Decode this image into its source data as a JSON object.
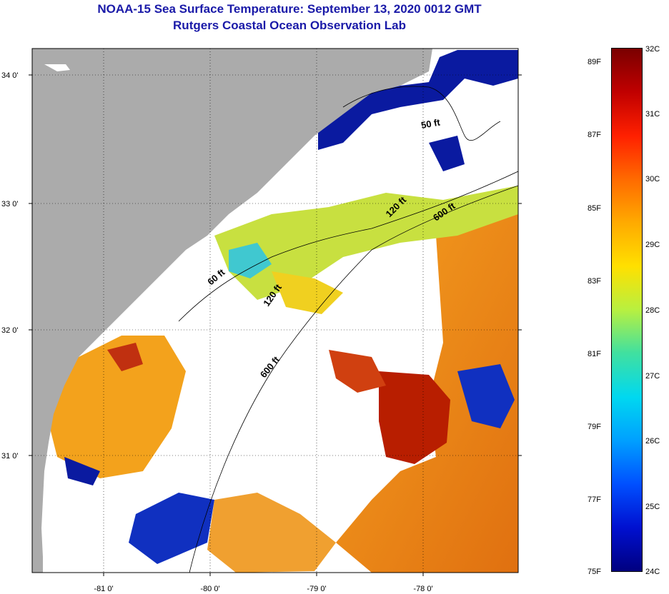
{
  "title_line1": "NOAA-15 Sea Surface Temperature:  September 13, 2020 0012 GMT",
  "title_line2": "Rutgers Coastal Ocean Observation Lab",
  "lat_labels": [
    "34 0'",
    "33 0'",
    "32 0'",
    "31 0'"
  ],
  "lon_labels": [
    "-81 0'",
    "-80 0'",
    "-79 0'",
    "-78 0'"
  ],
  "isobath_labels": [
    "50 ft",
    "120 ft",
    "600 ft",
    "60 ft",
    "120 ft",
    "600 ft"
  ],
  "colorbar": {
    "fahrenheit_labels": [
      "89F",
      "87F",
      "85F",
      "83F",
      "81F",
      "79F",
      "77F",
      "75F"
    ],
    "celsius_labels": [
      "32C",
      "31C",
      "30C",
      "29C",
      "28C",
      "27C",
      "26C",
      "25C",
      "24C"
    ],
    "gradient": [
      "#7a0000",
      "#c00000",
      "#ff2000",
      "#ff6a00",
      "#ffaa00",
      "#ffe000",
      "#b8f040",
      "#40e0a0",
      "#00d8f0",
      "#00a0ff",
      "#0050ff",
      "#0010d0",
      "#000080"
    ]
  },
  "colors": {
    "land": "#ababab",
    "no_data": "#ffffff",
    "cold": "#0a1aa0",
    "warm": "#f08a10",
    "hot": "#b81e00"
  }
}
